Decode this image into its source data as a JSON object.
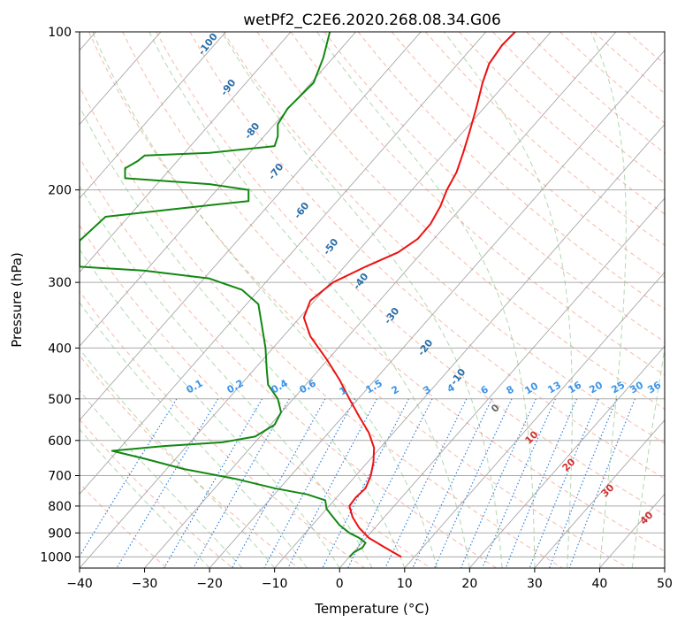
{
  "chart_data": {
    "type": "line",
    "title": "wetPf2_C2E6.2020.268.08.34.G06",
    "xlabel": "Temperature (°C)",
    "ylabel": "Pressure (hPa)",
    "xlim": [
      -40,
      50
    ],
    "ylim": [
      1050,
      100
    ],
    "y_scale": "log",
    "x_ticks": [
      -40,
      -30,
      -20,
      -10,
      0,
      10,
      20,
      30,
      40,
      50
    ],
    "y_ticks": [
      100,
      200,
      300,
      400,
      500,
      600,
      700,
      800,
      900,
      1000
    ],
    "grid": true,
    "colors": {
      "temperature": "#ee1111",
      "dewpoint": "#118811",
      "isotherms": "#999999",
      "dry_adiabats": "#f08060",
      "moist_adiabats": "#50aa50",
      "mixing_ratio": "#2277dd"
    },
    "series": [
      {
        "name": "",
        "role": "temperature",
        "points": [
          [
            9.5,
            1000
          ],
          [
            7,
            960
          ],
          [
            4.5,
            920
          ],
          [
            3,
            880
          ],
          [
            2,
            840
          ],
          [
            1.5,
            800
          ],
          [
            2.5,
            770
          ],
          [
            4,
            740
          ],
          [
            4.8,
            700
          ],
          [
            5.2,
            660
          ],
          [
            5.3,
            620
          ],
          [
            4.5,
            580
          ],
          [
            3,
            540
          ],
          [
            1.5,
            500
          ],
          [
            0,
            460
          ],
          [
            -2,
            420
          ],
          [
            -4.5,
            380
          ],
          [
            -5.5,
            350
          ],
          [
            -4.5,
            325
          ],
          [
            -1,
            300
          ],
          [
            4,
            280
          ],
          [
            9,
            263
          ],
          [
            12,
            248
          ],
          [
            14,
            232
          ],
          [
            15.5,
            215
          ],
          [
            16.5,
            200
          ],
          [
            18,
            185
          ],
          [
            19,
            170
          ],
          [
            20,
            155
          ],
          [
            21,
            140
          ],
          [
            22,
            125
          ],
          [
            23,
            115
          ],
          [
            25,
            106
          ],
          [
            27,
            100
          ]
        ]
      },
      {
        "name": "",
        "role": "dewpoint",
        "points": [
          [
            1.5,
            1000
          ],
          [
            2.2,
            980
          ],
          [
            3.5,
            960
          ],
          [
            4,
            940
          ],
          [
            3,
            920
          ],
          [
            1.5,
            900
          ],
          [
            0,
            870
          ],
          [
            -1,
            840
          ],
          [
            -2,
            810
          ],
          [
            -2.2,
            780
          ],
          [
            -5,
            760
          ],
          [
            -10,
            740
          ],
          [
            -16,
            710
          ],
          [
            -24,
            680
          ],
          [
            -30,
            650
          ],
          [
            -35,
            628
          ],
          [
            -27,
            615
          ],
          [
            -18,
            605
          ],
          [
            -13,
            590
          ],
          [
            -10,
            560
          ],
          [
            -9,
            530
          ],
          [
            -9.5,
            500
          ],
          [
            -11,
            470
          ],
          [
            -11.2,
            440
          ],
          [
            -11.4,
            400
          ],
          [
            -12,
            360
          ],
          [
            -12.5,
            330
          ],
          [
            -15,
            310
          ],
          [
            -20,
            295
          ],
          [
            -30,
            285
          ],
          [
            -40,
            280
          ],
          [
            -40,
            250
          ],
          [
            -36,
            225
          ],
          [
            -26,
            218
          ],
          [
            -14,
            210
          ],
          [
            -14,
            200
          ],
          [
            -20,
            195
          ],
          [
            -33,
            190
          ],
          [
            -33,
            182
          ],
          [
            -31,
            176
          ],
          [
            -30,
            172
          ],
          [
            -20,
            170
          ],
          [
            -10,
            165
          ],
          [
            -9.5,
            158
          ],
          [
            -9.5,
            150
          ],
          [
            -8,
            140
          ],
          [
            -4,
            125
          ],
          [
            -2.5,
            112
          ],
          [
            -1.5,
            100
          ]
        ]
      }
    ],
    "dry_adiabat_labels": [
      "-100",
      "-90",
      "-80",
      "-70",
      "-60",
      "-50",
      "-40",
      "-30",
      "-20",
      "-10"
    ],
    "mixing_ratio_labels": [
      "0.1",
      "0.2",
      "0.4",
      "0.6",
      "1",
      "1.5",
      "2",
      "3",
      "4",
      "6",
      "8",
      "10",
      "13",
      "16",
      "20",
      "25",
      "30",
      "36"
    ],
    "moist_adiabat_labels": [
      "0",
      "10",
      "20",
      "30",
      "40"
    ]
  }
}
